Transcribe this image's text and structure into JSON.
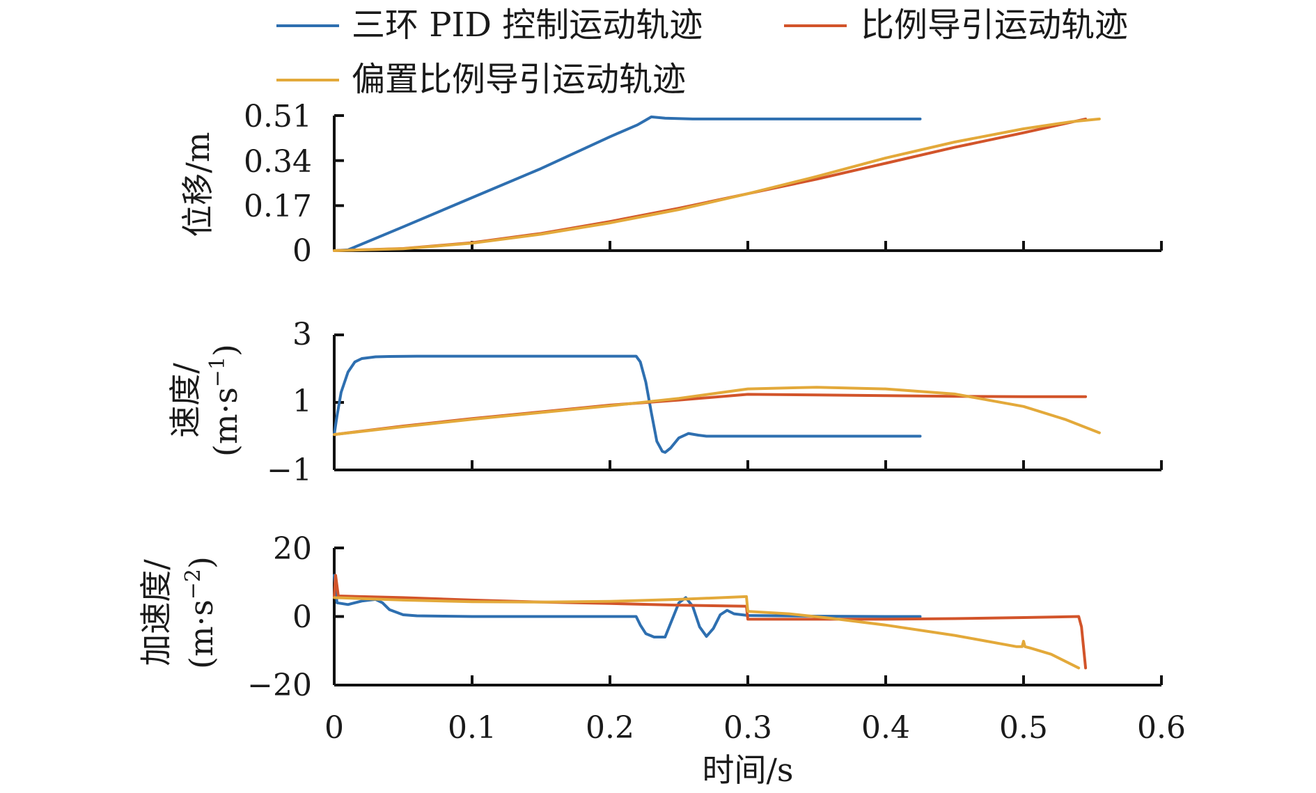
{
  "colors": {
    "pid": "#2e6fb0",
    "pn": "#d2542a",
    "bpn": "#e3a93a",
    "axis": "#111111"
  },
  "legend": {
    "items": [
      {
        "label": "三环 PID 控制运动轨迹",
        "color": "#2e6fb0"
      },
      {
        "label": "比例导引运动轨迹",
        "color": "#d2542a"
      },
      {
        "label": "偏置比例导引运动轨迹",
        "color": "#e3a93a"
      }
    ]
  },
  "xlabel": "时间/s",
  "chart_data": [
    {
      "type": "line",
      "ylabel": "位移/m",
      "xlim": [
        0,
        0.6
      ],
      "ylim": [
        0,
        0.51
      ],
      "xticks": [
        0,
        0.1,
        0.2,
        0.3,
        0.4,
        0.5,
        0.6
      ],
      "yticks": [
        0,
        0.17,
        0.34,
        0.51
      ],
      "ytick_labels": [
        "0",
        "0.17",
        "0.34",
        "0.51"
      ],
      "series": [
        {
          "name": "三环 PID 控制运动轨迹",
          "x": [
            0,
            0.01,
            0.05,
            0.1,
            0.15,
            0.2,
            0.22,
            0.225,
            0.23,
            0.24,
            0.26,
            0.3,
            0.35,
            0.4,
            0.425
          ],
          "y": [
            0,
            0.003,
            0.09,
            0.2,
            0.31,
            0.43,
            0.475,
            0.49,
            0.505,
            0.5,
            0.497,
            0.497,
            0.497,
            0.497,
            0.497
          ]
        },
        {
          "name": "比例导引运动轨迹",
          "x": [
            0,
            0.05,
            0.1,
            0.15,
            0.2,
            0.25,
            0.3,
            0.35,
            0.4,
            0.45,
            0.5,
            0.545
          ],
          "y": [
            0,
            0.008,
            0.03,
            0.065,
            0.11,
            0.16,
            0.215,
            0.27,
            0.33,
            0.39,
            0.445,
            0.497
          ]
        },
        {
          "name": "偏置比例导引运动轨迹",
          "x": [
            0,
            0.05,
            0.1,
            0.15,
            0.2,
            0.25,
            0.3,
            0.35,
            0.4,
            0.45,
            0.5,
            0.535,
            0.555
          ],
          "y": [
            0,
            0.007,
            0.028,
            0.062,
            0.105,
            0.155,
            0.215,
            0.28,
            0.35,
            0.41,
            0.46,
            0.487,
            0.497
          ]
        }
      ]
    },
    {
      "type": "line",
      "ylabel": "速度/",
      "ylabel2": "(m·s",
      "ylabel2_sup": "−1",
      "ylabel2_end": ")",
      "xlim": [
        0,
        0.6
      ],
      "ylim": [
        -1,
        3
      ],
      "xticks": [
        0,
        0.1,
        0.2,
        0.3,
        0.4,
        0.5,
        0.6
      ],
      "yticks": [
        -1,
        1,
        3
      ],
      "ytick_labels": [
        "−1",
        "1",
        "3"
      ],
      "series": [
        {
          "name": "三环 PID 控制运动轨迹",
          "x": [
            0,
            0.002,
            0.005,
            0.01,
            0.015,
            0.02,
            0.03,
            0.04,
            0.06,
            0.1,
            0.15,
            0.2,
            0.219,
            0.222,
            0.226,
            0.23,
            0.234,
            0.238,
            0.24,
            0.244,
            0.25,
            0.257,
            0.264,
            0.27,
            0.28,
            0.3,
            0.35,
            0.4,
            0.425
          ],
          "y": [
            0.05,
            0.6,
            1.3,
            1.9,
            2.2,
            2.3,
            2.35,
            2.36,
            2.37,
            2.37,
            2.37,
            2.37,
            2.37,
            2.2,
            1.6,
            0.7,
            -0.15,
            -0.45,
            -0.48,
            -0.35,
            -0.05,
            0.08,
            0.03,
            0.0,
            0.0,
            0.0,
            0.0,
            0.0,
            0.0
          ]
        },
        {
          "name": "比例导引运动轨迹",
          "x": [
            0,
            0.05,
            0.1,
            0.15,
            0.2,
            0.25,
            0.3,
            0.35,
            0.4,
            0.45,
            0.5,
            0.545
          ],
          "y": [
            0.05,
            0.3,
            0.52,
            0.72,
            0.92,
            1.07,
            1.24,
            1.22,
            1.2,
            1.18,
            1.17,
            1.17
          ]
        },
        {
          "name": "偏置比例导引运动轨迹",
          "x": [
            0,
            0.05,
            0.1,
            0.15,
            0.2,
            0.25,
            0.3,
            0.35,
            0.4,
            0.45,
            0.5,
            0.53,
            0.555
          ],
          "y": [
            0.05,
            0.28,
            0.5,
            0.7,
            0.9,
            1.12,
            1.4,
            1.45,
            1.4,
            1.25,
            0.88,
            0.5,
            0.1
          ]
        }
      ]
    },
    {
      "type": "line",
      "ylabel": "加速度/",
      "ylabel2": "(m·s",
      "ylabel2_sup": "−2",
      "ylabel2_end": ")",
      "xlim": [
        0,
        0.6
      ],
      "ylim": [
        -20,
        20
      ],
      "xticks": [
        0,
        0.1,
        0.2,
        0.3,
        0.4,
        0.5,
        0.6
      ],
      "xtick_labels": [
        "0",
        "0.1",
        "0.2",
        "0.3",
        "0.4",
        "0.5",
        "0.6"
      ],
      "yticks": [
        -20,
        0,
        20
      ],
      "ytick_labels": [
        "−20",
        "0",
        "20"
      ],
      "series": [
        {
          "name": "三环 PID 控制运动轨迹",
          "x": [
            0,
            0.002,
            0.01,
            0.02,
            0.03,
            0.035,
            0.04,
            0.05,
            0.06,
            0.08,
            0.1,
            0.15,
            0.2,
            0.219,
            0.222,
            0.226,
            0.232,
            0.238,
            0.24,
            0.245,
            0.25,
            0.255,
            0.26,
            0.265,
            0.27,
            0.275,
            0.28,
            0.285,
            0.29,
            0.3,
            0.35,
            0.4,
            0.425
          ],
          "y": [
            12,
            4,
            3.5,
            4.5,
            5,
            4,
            2,
            0.5,
            0.2,
            0.1,
            0,
            0,
            0,
            0,
            -2.5,
            -5,
            -6,
            -6,
            -6,
            -1,
            4,
            5.5,
            3,
            -3,
            -5.8,
            -3.5,
            0.5,
            1.8,
            0.8,
            0.3,
            0.1,
            0,
            0
          ]
        },
        {
          "name": "比例导引运动轨迹",
          "x": [
            0,
            0.001,
            0.003,
            0.05,
            0.1,
            0.15,
            0.2,
            0.25,
            0.299,
            0.3,
            0.35,
            0.4,
            0.45,
            0.5,
            0.54,
            0.542,
            0.545
          ],
          "y": [
            6,
            12,
            6,
            5.5,
            4.8,
            4.2,
            3.8,
            3.3,
            3.0,
            -0.8,
            -0.8,
            -0.8,
            -0.6,
            -0.3,
            0,
            -3,
            -15
          ]
        },
        {
          "name": "偏置比例导引运动轨迹",
          "x": [
            0,
            0.05,
            0.1,
            0.15,
            0.2,
            0.25,
            0.299,
            0.3,
            0.33,
            0.36,
            0.4,
            0.45,
            0.495,
            0.499,
            0.5,
            0.501,
            0.505,
            0.52,
            0.54
          ],
          "y": [
            5.5,
            4.8,
            4.3,
            4.2,
            4.4,
            5,
            5.8,
            1.5,
            0.8,
            -0.5,
            -2.5,
            -5.5,
            -8.8,
            -8.8,
            -7.2,
            -8.8,
            -9.2,
            -11,
            -15
          ]
        }
      ]
    }
  ]
}
